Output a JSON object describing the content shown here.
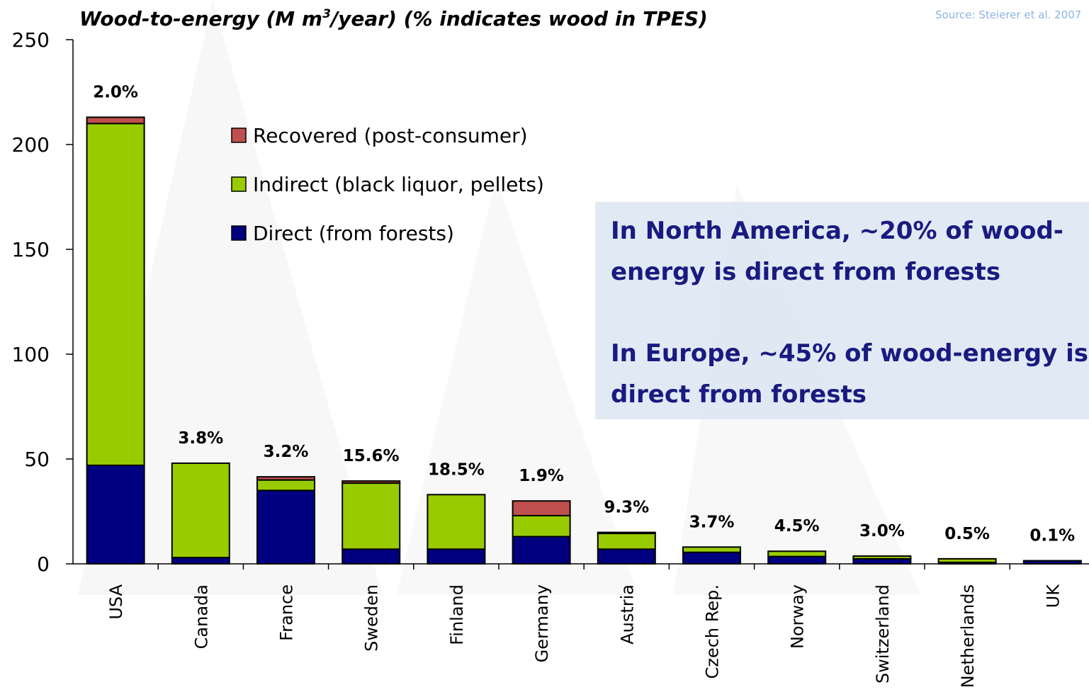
{
  "chart_data": {
    "type": "stacked_bar",
    "title_parts": [
      "Wood-to-energy (M m",
      "3",
      "/year)   (% indicates wood in TPES)"
    ],
    "source": "Source:  Steierer et al. 2007",
    "categories": [
      "USA",
      "Canada",
      "France",
      "Sweden",
      "Finland",
      "Germany",
      "Austria",
      "Czech Rep.",
      "Norway",
      "Switzerland",
      "Netherlands",
      "UK"
    ],
    "tpes_labels": [
      "2.0%",
      "3.8%",
      "3.2%",
      "15.6%",
      "18.5%",
      "1.9%",
      "9.3%",
      "3.7%",
      "4.5%",
      "3.0%",
      "0.5%",
      "0.1%"
    ],
    "series": [
      {
        "name": "Direct (from forests)",
        "color": "#000080",
        "values": [
          47,
          3,
          35,
          7,
          7,
          13,
          7,
          5.5,
          3.5,
          2.4,
          0.7,
          1.5
        ]
      },
      {
        "name": "Indirect (black liquor, pellets)",
        "color": "#99cc00",
        "values": [
          163,
          45,
          5,
          31.5,
          26,
          10,
          7.5,
          2.5,
          2.5,
          1.3,
          1.7,
          0
        ]
      },
      {
        "name": "Recovered (post-consumer)",
        "color": "#c0504d",
        "values": [
          3,
          0,
          1.5,
          1,
          0,
          7,
          0.5,
          0,
          0,
          0,
          0,
          0
        ]
      }
    ],
    "ylim": [
      0,
      250
    ],
    "yticks": [
      0,
      50,
      100,
      150,
      200,
      250
    ],
    "grid": false,
    "callout": [
      [
        "In North America, ~20% of wood-",
        "energy is direct from forests"
      ],
      [
        "In Europe, ~45% of wood-energy is",
        "direct from forests"
      ]
    ]
  }
}
